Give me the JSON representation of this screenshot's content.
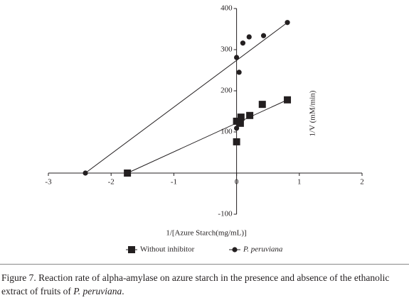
{
  "chart_data": {
    "type": "scatter",
    "x_label": "1/[Azure Starch(mg/mL)]",
    "y_label": "1/V (mM/min)",
    "xlim": [
      -3,
      2
    ],
    "xticks": [
      -3,
      -2,
      -1,
      0,
      1,
      2
    ],
    "ylim": [
      -100,
      400
    ],
    "yticks": [
      -100,
      100,
      200,
      300,
      400
    ],
    "series": [
      {
        "name": "Without inhibitor",
        "color": "#231f20",
        "marker": "square",
        "x": [
          -1.74,
          0,
          0,
          0.06,
          0.07,
          0.21,
          0.41,
          0.81
        ],
        "values": [
          0,
          76,
          126,
          121,
          136,
          140,
          167,
          178
        ]
      },
      {
        "name": "P. peruviana",
        "color": "#231f20",
        "marker": "circle",
        "x": [
          -2.41,
          0,
          0.04,
          0,
          0.1,
          0.2,
          0.43,
          0.81
        ],
        "values": [
          0,
          109,
          245,
          281,
          316,
          331,
          334,
          366
        ]
      }
    ]
  },
  "caption": {
    "text": "Figure 7. Reaction rate of alpha-amylase on azure starch in the presence and absence of the ethanolic extract of fruits of ",
    "name": "P. peruviana",
    "end": "."
  }
}
